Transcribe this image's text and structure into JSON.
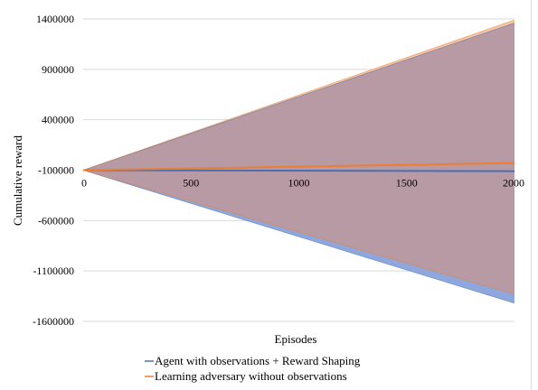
{
  "chart_data": {
    "type": "area",
    "title": "",
    "xlabel": "Episodes",
    "ylabel": "Cumulative reward",
    "xlim": [
      0,
      2000
    ],
    "ylim": [
      -1600000,
      1400000
    ],
    "x_ticks": [
      0,
      500,
      1000,
      1500,
      2000
    ],
    "y_ticks": [
      1400000,
      900000,
      400000,
      -100000,
      -600000,
      -1100000,
      -1600000
    ],
    "x_tick_labels": [
      "0",
      "500",
      "1000",
      "1500",
      "2000"
    ],
    "y_tick_labels": [
      "1400000",
      "900000",
      "400000",
      "-100000",
      "-600000",
      "-1100000",
      "-1600000"
    ],
    "grid": "horizontal",
    "legend_position": "bottom",
    "series": [
      {
        "name": "Agent with observations + Reward Shaping",
        "color": "#4a6fb0",
        "fill_color": "#8ea7dc",
        "x": [
          0,
          2000
        ],
        "mean": [
          -100000,
          -110000
        ],
        "lower": [
          -100000,
          -1420000
        ],
        "upper": [
          -100000,
          1360000
        ]
      },
      {
        "name": "Learning adversary without observations",
        "color": "#ed7d31",
        "fill_color": "#f6c6a4",
        "x": [
          0,
          2000
        ],
        "mean": [
          -100000,
          -30000
        ],
        "lower": [
          -100000,
          -1330000
        ],
        "upper": [
          -100000,
          1390000
        ]
      }
    ],
    "overlap_color": "#b79aa3"
  }
}
